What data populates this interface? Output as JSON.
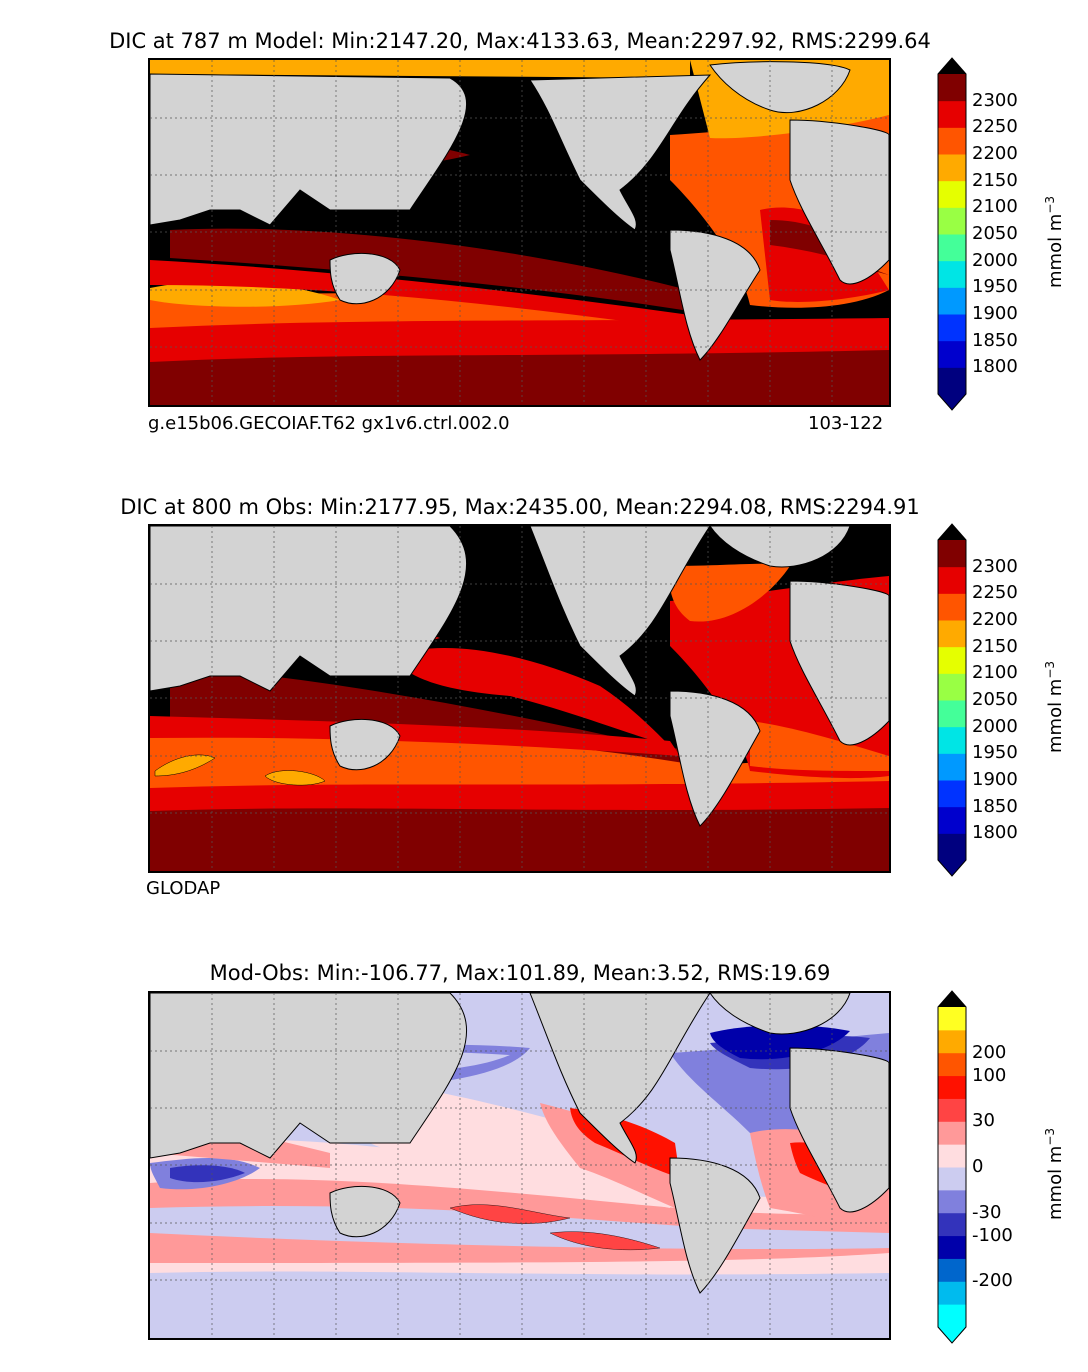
{
  "panels": [
    {
      "title": "DIC at 787 m Model: Min:2147.20, Max:4133.63, Mean:2297.92, RMS:2299.64",
      "caption_left": "g.e15b06.GECOIAF.T62 gx1v6.ctrl.002.0",
      "caption_right": "103-122",
      "unit": "mmol m",
      "unit_exp": "−3",
      "colorbar": {
        "colors": [
          "#00007f",
          "#0000cd",
          "#0033ff",
          "#0099ff",
          "#00e5e5",
          "#44ff99",
          "#99ff44",
          "#e5ff00",
          "#ffaa00",
          "#ff5500",
          "#e60000",
          "#800000"
        ],
        "over_color": "#000000",
        "labels": [
          "1800",
          "1850",
          "1900",
          "1950",
          "2000",
          "2050",
          "2100",
          "2150",
          "2200",
          "2250",
          "2300"
        ]
      }
    },
    {
      "title": "DIC at 800 m Obs: Min:2177.95, Max:2435.00, Mean:2294.08, RMS:2294.91",
      "caption_left": "GLODAP",
      "caption_right": "",
      "unit": "mmol m",
      "unit_exp": "−3",
      "colorbar": {
        "colors": [
          "#00007f",
          "#0000cd",
          "#0033ff",
          "#0099ff",
          "#00e5e5",
          "#44ff99",
          "#99ff44",
          "#e5ff00",
          "#ffaa00",
          "#ff5500",
          "#e60000",
          "#800000"
        ],
        "over_color": "#000000",
        "labels": [
          "1800",
          "1850",
          "1900",
          "1950",
          "2000",
          "2050",
          "2100",
          "2150",
          "2200",
          "2250",
          "2300"
        ]
      }
    },
    {
      "title": "Mod-Obs: Min:-106.77, Max:101.89, Mean:3.52, RMS:19.69",
      "caption_left": "",
      "caption_right": "",
      "unit": "mmol m",
      "unit_exp": "−3",
      "colorbar": {
        "colors": [
          "#00ffff",
          "#00bbee",
          "#0066cc",
          "#0000aa",
          "#3333bb",
          "#8080dd",
          "#ccccf0",
          "#ffdde0",
          "#ff9999",
          "#ff4444",
          "#ff1100",
          "#ff5500",
          "#ffaa00",
          "#ffff22"
        ],
        "over_color": "#000000",
        "labels": [
          "-200",
          "-100",
          "-30",
          "0",
          "30",
          "100",
          "200"
        ]
      }
    }
  ],
  "colors": {
    "land": "#d3d3d3",
    "grid": "#555555"
  }
}
